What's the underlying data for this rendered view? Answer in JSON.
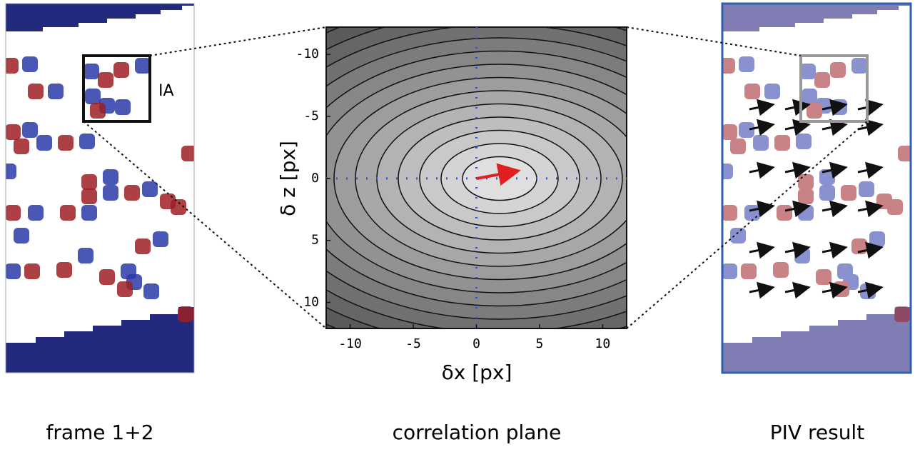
{
  "panels": {
    "left": {
      "label": "frame 1+2",
      "ia_label": "IA"
    },
    "center": {
      "label": "correlation plane",
      "x_label": "δx [px]",
      "y_label": "δ z [px]",
      "xlim": [
        -11.9,
        11.9
      ],
      "ylim": [
        -12.2,
        12.1
      ],
      "xticks": [
        -10,
        -5,
        0,
        5,
        10
      ],
      "yticks": [
        -10,
        -5,
        0,
        5,
        10
      ]
    },
    "right": {
      "label": "PIV result"
    }
  }
}
